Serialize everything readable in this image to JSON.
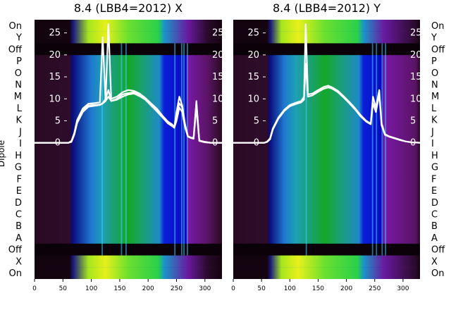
{
  "figure": {
    "ylabel": "Dipole",
    "categories_bottom_to_top": [
      "On",
      "X",
      "Off",
      "A",
      "B",
      "C",
      "D",
      "E",
      "F",
      "G",
      "H",
      "I",
      "J",
      "K",
      "L",
      "M",
      "N",
      "O",
      "P",
      "Off",
      "Y",
      "On"
    ]
  },
  "panels": [
    {
      "title": "8.4 (LBB4=2012) X",
      "bands": {
        "left_dark_to": 62,
        "ramp_to": 100,
        "peak": 165,
        "blue_from": 228,
        "purple_from": 270,
        "purple_to": 305
      },
      "top_band": {
        "start": 65,
        "end": 305
      },
      "bottom_band": {
        "start": 65,
        "end": 305
      },
      "stripe_x": [
        118,
        152,
        160,
        246,
        258,
        262,
        268
      ]
    },
    {
      "title": "8.4 (LBB4=2012) Y",
      "bands": {
        "left_dark_to": 60,
        "ramp_to": 90,
        "peak": 162,
        "blue_from": 230,
        "purple_from": 266,
        "purple_to": 322
      },
      "top_band": {
        "start": 60,
        "end": 310
      },
      "bottom_band": {
        "start": 60,
        "end": 315
      },
      "stripe_x": [
        128,
        245,
        252,
        262,
        268
      ]
    }
  ],
  "chart_data": [
    {
      "type": "heatmap",
      "title": "8.4 (LBB4=2012) X",
      "ylabel": "Dipole",
      "x_ticks": [
        0,
        50,
        100,
        150,
        200,
        250,
        300
      ],
      "xlim": [
        0,
        330
      ],
      "rows": [
        "On",
        "X",
        "Off",
        "A",
        "B",
        "C",
        "D",
        "E",
        "F",
        "G",
        "H",
        "I",
        "J",
        "K",
        "L",
        "M",
        "N",
        "O",
        "P",
        "Off",
        "Y",
        "On"
      ],
      "overlay": {
        "type": "line",
        "y_ticks": [
          0,
          5,
          10,
          15,
          20,
          25
        ],
        "ylim": [
          -31,
          28
        ],
        "x": [
          0,
          60,
          65,
          70,
          75,
          85,
          95,
          105,
          115,
          120,
          125,
          130,
          135,
          145,
          155,
          165,
          175,
          185,
          195,
          205,
          215,
          225,
          235,
          242,
          246,
          250,
          255,
          260,
          265,
          270,
          275,
          280,
          285,
          290,
          300,
          310,
          320,
          330
        ],
        "series": [
          {
            "values": [
              0,
              0,
              0.3,
              2,
              5,
              7.5,
              8.5,
              8.6,
              8.7,
              9,
              10,
              12,
              9.5,
              10,
              11,
              11.3,
              11.5,
              11,
              10,
              8.8,
              7.5,
              6,
              4.6,
              4,
              3.5,
              6,
              9,
              8,
              4,
              1.5,
              1.2,
              1,
              9,
              0.5,
              0.2,
              0,
              0,
              0
            ]
          },
          {
            "values": [
              0,
              0,
              0.2,
              1.8,
              4.5,
              7,
              8.2,
              8.4,
              8.6,
              8.9,
              9.5,
              10.5,
              9.5,
              9.8,
              10.5,
              11,
              11.2,
              10.6,
              9.8,
              8.5,
              7.2,
              5.8,
              4.4,
              3.8,
              3.4,
              5,
              8,
              7,
              3.5,
              1.4,
              1.1,
              0.9,
              8,
              0.4,
              0.1,
              0,
              0,
              0
            ]
          },
          {
            "values": [
              0,
              0,
              0.4,
              2.2,
              5.2,
              7.8,
              8.9,
              9,
              9.2,
              24,
              9.5,
              27,
              10,
              10.5,
              11.5,
              12,
              11.8,
              11.2,
              10.2,
              9,
              7.8,
              6.2,
              4.8,
              4.2,
              3.6,
              7,
              10.5,
              8.5,
              4.2,
              1.5,
              1.2,
              1.1,
              9.5,
              0.5,
              0.2,
              0,
              0,
              0
            ]
          }
        ]
      }
    },
    {
      "type": "heatmap",
      "title": "8.4 (LBB4=2012) Y",
      "x_ticks": [
        0,
        50,
        100,
        150,
        200,
        250,
        300
      ],
      "xlim": [
        0,
        330
      ],
      "rows": [
        "On",
        "X",
        "Off",
        "A",
        "B",
        "C",
        "D",
        "E",
        "F",
        "G",
        "H",
        "I",
        "J",
        "K",
        "L",
        "M",
        "N",
        "O",
        "P",
        "Off",
        "Y",
        "On"
      ],
      "overlay": {
        "type": "line",
        "y_ticks": [
          0,
          5,
          10,
          15,
          20,
          25
        ],
        "ylim": [
          -31,
          28
        ],
        "x": [
          0,
          55,
          60,
          65,
          70,
          80,
          90,
          100,
          110,
          120,
          125,
          128,
          132,
          140,
          150,
          160,
          168,
          175,
          185,
          195,
          205,
          215,
          225,
          235,
          243,
          247,
          252,
          258,
          262,
          268,
          275,
          285,
          295,
          305,
          315,
          330
        ],
        "series": [
          {
            "values": [
              0,
              0,
              0.2,
              0.8,
              3,
              5.5,
              7.2,
              8.3,
              8.8,
              9.2,
              9.8,
              18,
              10.5,
              10.8,
              11.6,
              12.3,
              12.6,
              12.3,
              11.5,
              10.3,
              9,
              7.6,
              6,
              4.8,
              4.2,
              9,
              7,
              11,
              4,
              1.8,
              1.4,
              1,
              0.6,
              0.3,
              0.1,
              0
            ]
          },
          {
            "values": [
              0,
              0,
              0.3,
              1,
              3.3,
              5.8,
              7.5,
              8.6,
              9.1,
              9.5,
              10.5,
              27,
              11,
              11.2,
              12,
              12.7,
              13,
              12.6,
              11.8,
              10.6,
              9.3,
              7.9,
              6.3,
              5,
              4.4,
              10.5,
              8,
              12,
              4.5,
              2,
              1.5,
              1.1,
              0.7,
              0.3,
              0.1,
              0
            ]
          }
        ]
      }
    }
  ]
}
